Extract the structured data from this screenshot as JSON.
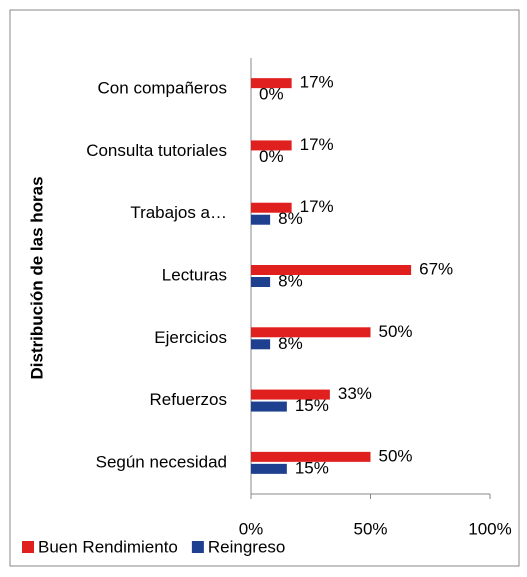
{
  "chart_data": {
    "type": "barh",
    "y_label": "Distribución de las horas",
    "categories": [
      "Con compañeros",
      "Consulta tutoriales",
      "Trabajos a…",
      "Lecturas",
      "Ejercicios",
      "Refuerzos",
      "Según necesidad"
    ],
    "series": [
      {
        "name": "Buen Rendimiento",
        "color": "#e0201f",
        "values": [
          17,
          17,
          17,
          67,
          50,
          33,
          50
        ],
        "value_labels": [
          "17%",
          "17%",
          "17%",
          "67%",
          "50%",
          "33%",
          "50%"
        ]
      },
      {
        "name": "Reingreso",
        "color": "#1f3f8f",
        "values": [
          0,
          0,
          8,
          8,
          8,
          15,
          15
        ],
        "value_labels": [
          "0%",
          "0%",
          "8%",
          "8%",
          "8%",
          "15%",
          "15%"
        ]
      }
    ],
    "xlim": [
      0,
      100
    ],
    "xticks": [
      {
        "value": 0,
        "label": "0%"
      },
      {
        "value": 50,
        "label": "50%"
      },
      {
        "value": 100,
        "label": "100%"
      }
    ],
    "legend": "bottom"
  }
}
